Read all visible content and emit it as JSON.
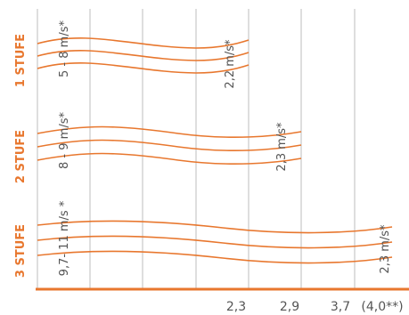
{
  "colors": {
    "accent": "#e8772e",
    "grid": "#bdbdbd",
    "text": "#555555"
  },
  "stages": [
    {
      "label": "1 STUFE",
      "start_speed": "5 - 8 m/s*",
      "end_speed": "2,2 m/s*"
    },
    {
      "label": "2 STUFE",
      "start_speed": "8 - 9 m/s*",
      "end_speed": "2,3 m/s*"
    },
    {
      "label": "3 STUFE",
      "start_speed": "9,7- 11 m/s *",
      "end_speed": "2,3 m/s*"
    }
  ],
  "axis": {
    "ticks": [
      "2,3",
      "2,9",
      "3,7",
      "(4,0**)"
    ]
  }
}
